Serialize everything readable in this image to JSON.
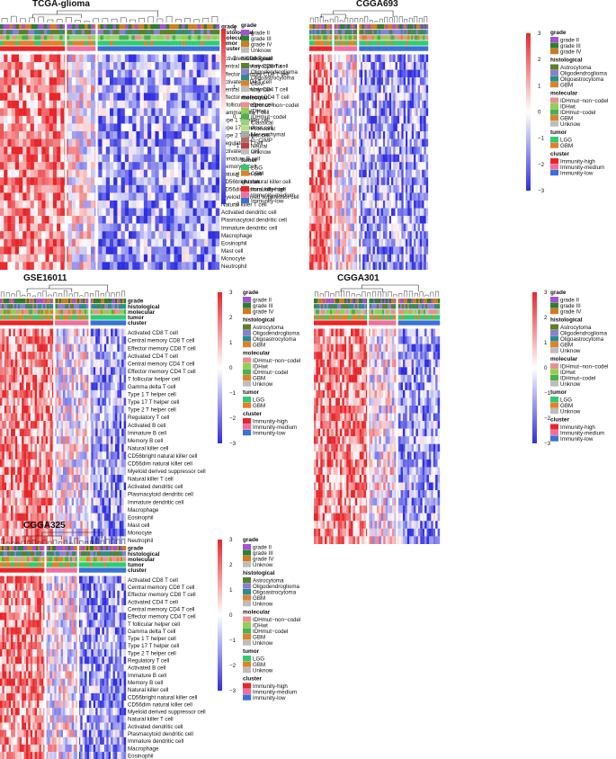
{
  "figure": {
    "annotation_track_labels": [
      "grade",
      "histological",
      "molecular",
      "tumor",
      "cluster"
    ],
    "cell_types": [
      "Activated CD8 T cell",
      "Central memory CD8 T cell",
      "Effector memory CD8 T cell",
      "Activated CD4 T cell",
      "Central memory CD4 T cell",
      "Effector memory CD4 T cell",
      "T follicular helper cell",
      "Gamma delta T cell",
      "Type 1 T helper cell",
      "Type 17 T helper cell",
      "Type 2 T helper cell",
      "Regulatory T cell",
      "Activated B cell",
      "Immature B cell",
      "Memory B cell",
      "Natural killer cell",
      "CD56bright natural killer cell",
      "CD56dim natural killer cell",
      "Myeloid derived suppressor cell",
      "Natural killer T cell",
      "Activated dendritic cell",
      "Plasmacytoid dendritic cell",
      "Immature dendritic cell",
      "Macrophage",
      "Eosinophil",
      "Mast cell",
      "Monocyte",
      "Neutrophil"
    ],
    "color_scale": {
      "ticks": [
        "3",
        "2",
        "1",
        "0",
        "−1",
        "−2",
        "−3"
      ],
      "high_color": "#e8262a",
      "mid_color": "#ffffff",
      "low_color": "#2e2ee0"
    },
    "palette": {
      "grade II": "#a352d6",
      "grade III": "#2e7d32",
      "grade IV": "#d17a1e",
      "Unknow": "#bdbdbd",
      "Astrocytoma": "#5b7f2b",
      "Oligodendroglioma": "#8c7fd0",
      "Oligoastrocytoma": "#2c8c8c",
      "GBM": "#e0812a",
      "IDHmut-non-codel": "#e89090",
      "IDHwt": "#8fd14f",
      "IDHmut-codel": "#4caf50",
      "Classical": "#9bd17a",
      "Proneural": "#b6e08a",
      "Mesenchymal": "#a9a9a9",
      "G-CIMP": "#b07070",
      "Neural": "#c04040",
      "LGG": "#2ecc71",
      "Immunity-high": "#e8262a",
      "Immunity-medium": "#f06ea0",
      "Immunity-low": "#3a70d8"
    },
    "panels": [
      {
        "title": "TCGA-glioma",
        "legend": [
          {
            "header": "grade",
            "items": [
              "grade II",
              "grade III",
              "grade IV",
              "Unknow"
            ]
          },
          {
            "header": "histological",
            "items": [
              "Astrocytoma",
              "Oligodendroglioma",
              "Oligoastrocytoma",
              "GBM",
              "Unknow"
            ]
          },
          {
            "header": "molecular",
            "items": [
              "IDHmut−non−codel",
              "IDHwt",
              "IDHmut−codel",
              "Classical",
              "Proneural",
              "Mesenchymal",
              "G−CIMP",
              "Neural",
              "Unknow"
            ]
          },
          {
            "header": "tumor",
            "items": [
              "LGG",
              "GBM"
            ]
          },
          {
            "header": "cluster",
            "items": [
              "Immunity-high",
              "Immunity-medium",
              "Immunity-low"
            ]
          }
        ]
      },
      {
        "title": "CGGA693",
        "legend": [
          {
            "header": "grade",
            "items": [
              "grade II",
              "grade III",
              "grade IV"
            ]
          },
          {
            "header": "histological",
            "items": [
              "Astrocytoma",
              "Oligodendroglioma",
              "Oligoastrocytoma",
              "GBM"
            ]
          },
          {
            "header": "molecular",
            "items": [
              "IDHmut−non−codel",
              "IDHwt",
              "IDHmut−codel",
              "GBM",
              "Unknow"
            ]
          },
          {
            "header": "tumor",
            "items": [
              "LGG",
              "GBM"
            ]
          },
          {
            "header": "cluster",
            "items": [
              "Immunity-high",
              "Immunity-medium",
              "Immunity-low"
            ]
          }
        ]
      },
      {
        "title": "GSE16011",
        "legend": [
          {
            "header": "grade",
            "items": [
              "grade II",
              "grade III",
              "grade IV"
            ]
          },
          {
            "header": "histological",
            "items": [
              "Astrocytoma",
              "Oligodendroglioma",
              "Oligoastrocytoma",
              "GBM"
            ]
          },
          {
            "header": "molecular",
            "items": [
              "IDHmut−non−codel",
              "IDHwt",
              "IDHmut−codel",
              "GBM",
              "Unknow"
            ]
          },
          {
            "header": "tumor",
            "items": [
              "LGG",
              "GBM"
            ]
          },
          {
            "header": "cluster",
            "items": [
              "Immunity-high",
              "Immunity-medium",
              "Immunity-low"
            ]
          }
        ]
      },
      {
        "title": "CGGA301",
        "legend": [
          {
            "header": "grade",
            "items": [
              "grade II",
              "grade III",
              "grade IV"
            ]
          },
          {
            "header": "histological",
            "items": [
              "Astrocytoma",
              "Oligodendroglioma",
              "Oligoastrocytoma",
              "GBM",
              "Unknow"
            ]
          },
          {
            "header": "molecular",
            "items": [
              "IDHmut−non−codel",
              "IDHwt",
              "IDHmut−codel",
              "Unknow"
            ]
          },
          {
            "header": "tumor",
            "items": [
              "LGG",
              "GBM",
              "Unknow"
            ]
          },
          {
            "header": "cluster",
            "items": [
              "Immunity-high",
              "Immunity-medium",
              "Immunity-low"
            ]
          }
        ]
      },
      {
        "title": "CGGA325",
        "legend": [
          {
            "header": "grade",
            "items": [
              "grade II",
              "grade III",
              "grade IV",
              "Unknow"
            ]
          },
          {
            "header": "histological",
            "items": [
              "Astrocytoma",
              "Oligodendroglioma",
              "Oligoastrocytoma",
              "GBM",
              "Unknow"
            ]
          },
          {
            "header": "molecular",
            "items": [
              "IDHmut−non−codel",
              "IDHwt",
              "IDHmut−codel",
              "GBM",
              "Unknow"
            ]
          },
          {
            "header": "tumor",
            "items": [
              "LGG",
              "GBM",
              "Unknow"
            ]
          },
          {
            "header": "cluster",
            "items": [
              "Immunity-high",
              "Immunity-medium",
              "Immunity-low"
            ]
          }
        ]
      }
    ]
  }
}
